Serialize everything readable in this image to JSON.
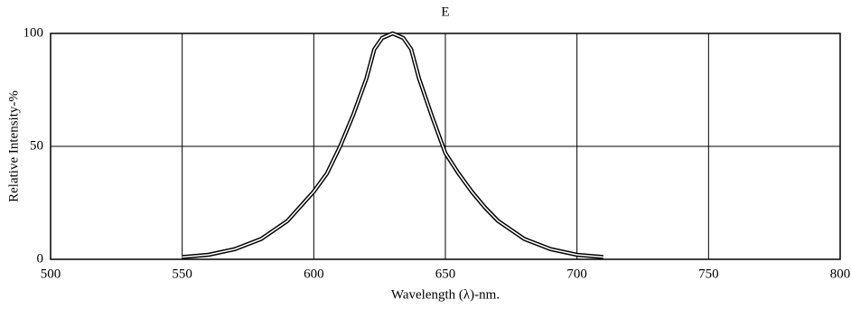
{
  "chart_data": {
    "type": "line",
    "title": "E",
    "x_label": "Wavelength (λ)-nm.",
    "y_label": "Relative Intensity-%",
    "x": [
      550,
      560,
      570,
      580,
      590,
      600,
      605,
      610,
      615,
      620,
      623,
      626,
      630,
      634,
      637,
      640,
      645,
      650,
      655,
      660,
      665,
      670,
      680,
      690,
      700,
      710
    ],
    "series": [
      {
        "name": "E",
        "color": "#000000",
        "values": [
          1,
          2,
          4.5,
          9,
          17,
          30,
          38,
          50,
          64,
          80,
          93,
          98,
          100,
          98,
          93,
          80,
          63,
          47,
          38,
          30,
          23,
          17,
          9,
          4.5,
          2,
          1
        ]
      }
    ],
    "xlim": [
      500,
      800
    ],
    "xticks": [
      500,
      550,
      600,
      650,
      700,
      750,
      800
    ],
    "ylim": [
      0,
      100
    ],
    "yticks": [
      0,
      50,
      100
    ],
    "grid": true
  }
}
